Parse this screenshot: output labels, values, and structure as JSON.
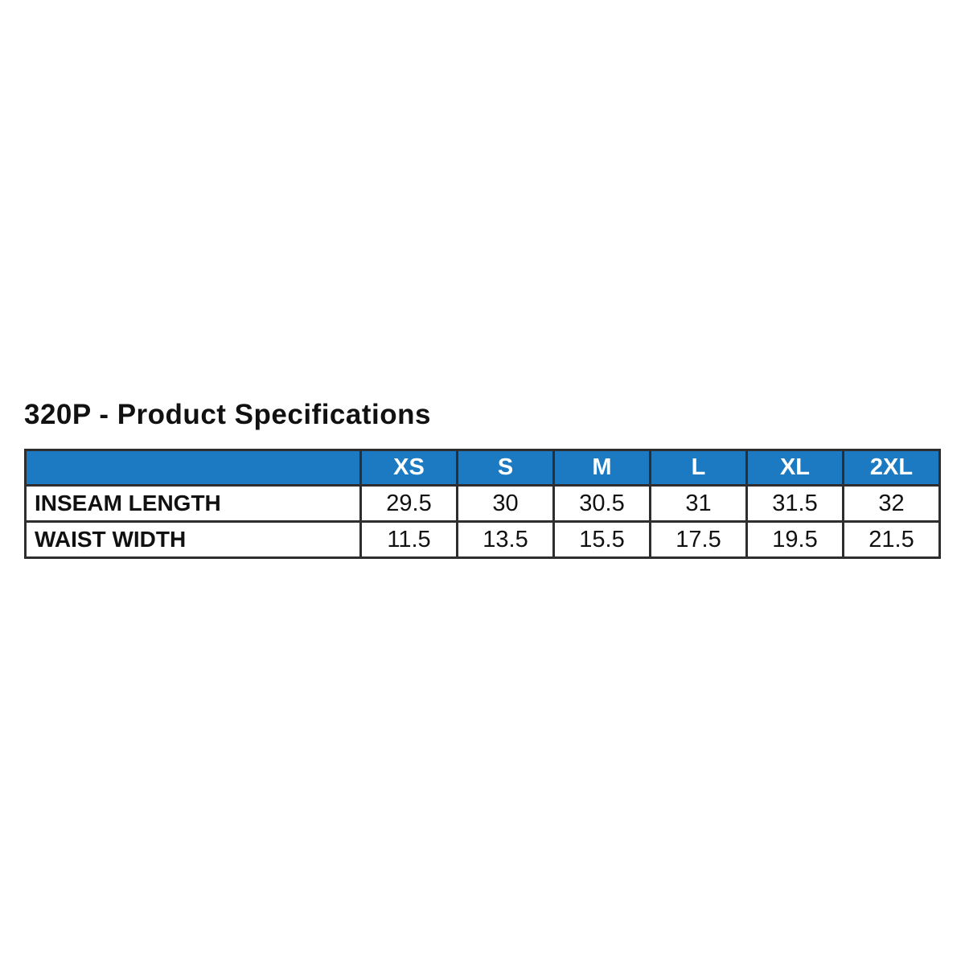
{
  "page": {
    "title": "320P - Product Specifications"
  },
  "table": {
    "header": [
      "",
      "XS",
      "S",
      "M",
      "L",
      "XL",
      "2XL"
    ],
    "rows": [
      {
        "label": "INSEAM LENGTH",
        "values": [
          "29.5",
          "30",
          "30.5",
          "31",
          "31.5",
          "32"
        ]
      },
      {
        "label": "WAIST WIDTH",
        "values": [
          "11.5",
          "13.5",
          "15.5",
          "17.5",
          "19.5",
          "21.5"
        ]
      }
    ],
    "colors": {
      "header_bg": "#1b7ac1",
      "header_text": "#ffffff",
      "border": "#2e2e2e"
    }
  }
}
